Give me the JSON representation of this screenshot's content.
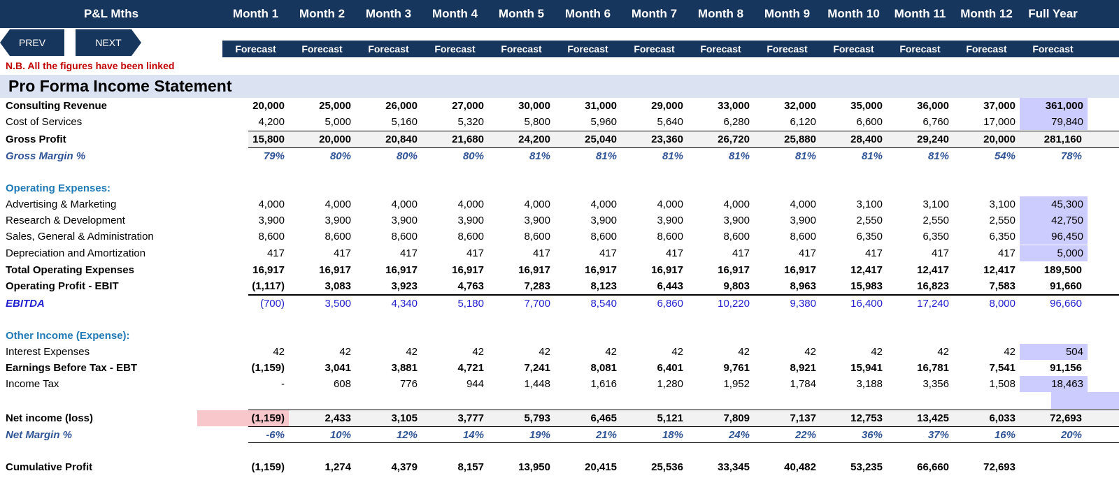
{
  "header": {
    "title": "P&L Mths",
    "months": [
      "Month 1",
      "Month 2",
      "Month 3",
      "Month 4",
      "Month 5",
      "Month 6",
      "Month 7",
      "Month 8",
      "Month 9",
      "Month 10",
      "Month 11",
      "Month 12",
      "Full Year"
    ],
    "subheaders": [
      "Forecast",
      "Forecast",
      "Forecast",
      "Forecast",
      "Forecast",
      "Forecast",
      "Forecast",
      "Forecast",
      "Forecast",
      "Forecast",
      "Forecast",
      "Forecast",
      "Forecast"
    ]
  },
  "nav": {
    "prev_label": "PREV",
    "next_label": "NEXT"
  },
  "note": "N.B. All the figures have been linked",
  "section_title": "Pro Forma Income Statement",
  "rows": {
    "consulting_revenue": {
      "label": "Consulting Revenue",
      "values": [
        "20,000",
        "25,000",
        "26,000",
        "27,000",
        "30,000",
        "31,000",
        "29,000",
        "33,000",
        "32,000",
        "35,000",
        "36,000",
        "37,000",
        "361,000"
      ]
    },
    "cost_of_services": {
      "label": "Cost of Services",
      "values": [
        "4,200",
        "5,000",
        "5,160",
        "5,320",
        "5,800",
        "5,960",
        "5,640",
        "6,280",
        "6,120",
        "6,600",
        "6,760",
        "17,000",
        "79,840"
      ]
    },
    "gross_profit": {
      "label": "Gross Profit",
      "values": [
        "15,800",
        "20,000",
        "20,840",
        "21,680",
        "24,200",
        "25,040",
        "23,360",
        "26,720",
        "25,880",
        "28,400",
        "29,240",
        "20,000",
        "281,160"
      ]
    },
    "gross_margin": {
      "label": "Gross Margin %",
      "values": [
        "79%",
        "80%",
        "80%",
        "80%",
        "81%",
        "81%",
        "81%",
        "81%",
        "81%",
        "81%",
        "81%",
        "54%",
        "78%"
      ]
    },
    "opex_heading": {
      "label": "Operating Expenses:"
    },
    "advertising": {
      "label": "Advertising & Marketing",
      "values": [
        "4,000",
        "4,000",
        "4,000",
        "4,000",
        "4,000",
        "4,000",
        "4,000",
        "4,000",
        "4,000",
        "3,100",
        "3,100",
        "3,100",
        "45,300"
      ]
    },
    "research": {
      "label": "Research & Development",
      "values": [
        "3,900",
        "3,900",
        "3,900",
        "3,900",
        "3,900",
        "3,900",
        "3,900",
        "3,900",
        "3,900",
        "2,550",
        "2,550",
        "2,550",
        "42,750"
      ]
    },
    "sga": {
      "label": "Sales, General & Administration",
      "values": [
        "8,600",
        "8,600",
        "8,600",
        "8,600",
        "8,600",
        "8,600",
        "8,600",
        "8,600",
        "8,600",
        "6,350",
        "6,350",
        "6,350",
        "96,450"
      ]
    },
    "depreciation": {
      "label": "Depreciation and Amortization",
      "values": [
        "417",
        "417",
        "417",
        "417",
        "417",
        "417",
        "417",
        "417",
        "417",
        "417",
        "417",
        "417",
        "5,000"
      ]
    },
    "total_opex": {
      "label": "Total Operating Expenses",
      "values": [
        "16,917",
        "16,917",
        "16,917",
        "16,917",
        "16,917",
        "16,917",
        "16,917",
        "16,917",
        "16,917",
        "12,417",
        "12,417",
        "12,417",
        "189,500"
      ]
    },
    "ebit": {
      "label": "Operating Profit - EBIT",
      "values": [
        "(1,117)",
        "3,083",
        "3,923",
        "4,763",
        "7,283",
        "8,123",
        "6,443",
        "9,803",
        "8,963",
        "15,983",
        "16,823",
        "7,583",
        "91,660"
      ]
    },
    "ebitda": {
      "label": "EBITDA",
      "values": [
        "(700)",
        "3,500",
        "4,340",
        "5,180",
        "7,700",
        "8,540",
        "6,860",
        "10,220",
        "9,380",
        "16,400",
        "17,240",
        "8,000",
        "96,660"
      ]
    },
    "other_heading": {
      "label": "Other Income (Expense):"
    },
    "interest": {
      "label": "Interest Expenses",
      "values": [
        "42",
        "42",
        "42",
        "42",
        "42",
        "42",
        "42",
        "42",
        "42",
        "42",
        "42",
        "42",
        "504"
      ]
    },
    "ebt": {
      "label": "Earnings Before Tax - EBT",
      "values": [
        "(1,159)",
        "3,041",
        "3,881",
        "4,721",
        "7,241",
        "8,081",
        "6,401",
        "9,761",
        "8,921",
        "15,941",
        "16,781",
        "7,541",
        "91,156"
      ]
    },
    "income_tax": {
      "label": "Income Tax",
      "values": [
        "-",
        "608",
        "776",
        "944",
        "1,448",
        "1,616",
        "1,280",
        "1,952",
        "1,784",
        "3,188",
        "3,356",
        "1,508",
        "18,463"
      ]
    },
    "net_income": {
      "label": "Net income (loss)",
      "values": [
        "(1,159)",
        "2,433",
        "3,105",
        "3,777",
        "5,793",
        "6,465",
        "5,121",
        "7,809",
        "7,137",
        "12,753",
        "13,425",
        "6,033",
        "72,693"
      ]
    },
    "net_margin": {
      "label": "Net Margin %",
      "values": [
        "-6%",
        "10%",
        "12%",
        "14%",
        "19%",
        "21%",
        "18%",
        "24%",
        "22%",
        "36%",
        "37%",
        "16%",
        "20%"
      ]
    },
    "cumulative": {
      "label": "Cumulative Profit",
      "values": [
        "(1,159)",
        "1,274",
        "4,379",
        "8,157",
        "13,950",
        "20,415",
        "25,536",
        "33,345",
        "40,482",
        "53,235",
        "66,660",
        "72,693",
        ""
      ]
    }
  },
  "colors": {
    "header_bg": "#17365d",
    "band_bg": "#dbe3f3",
    "highlight": "#ccccff",
    "negative_highlight": "#f8c7cc",
    "note_red": "#c00000"
  }
}
